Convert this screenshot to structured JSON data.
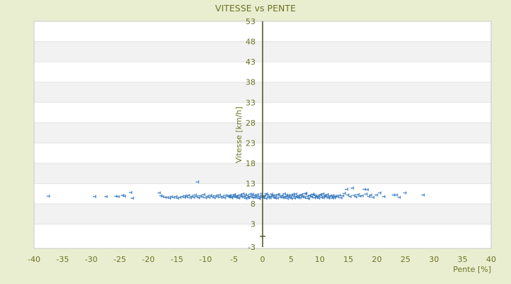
{
  "page": {
    "background_color": "#e9eed1",
    "text_color": "#6e7424"
  },
  "chart_data": {
    "type": "scatter",
    "title": "VITESSE vs PENTE",
    "xlabel": "Pente [%]",
    "ylabel": "Vitesse [km/h]",
    "xlim": [
      -40,
      40
    ],
    "ylim": [
      -3,
      53
    ],
    "x_tick_labels": [
      -40,
      -35,
      -30,
      -25,
      -20,
      -15,
      -10,
      -5,
      0,
      5,
      10,
      15,
      20,
      25,
      30,
      35,
      40
    ],
    "y_tick_labels": [
      53,
      48,
      43,
      38,
      33,
      28,
      23,
      18,
      13,
      8,
      3,
      -3
    ],
    "grid": "alternating horizontal bands, y-axis line drawn at x=0 with tick at y=0",
    "legend": "none",
    "marker": "plus",
    "marker_color": "#3e7ec1",
    "band_colors": [
      "#ffffff",
      "#f2f2f2"
    ],
    "band_line_color": "#e3e3e3",
    "plot_border_color": "#c9c9c9",
    "axis_line_color": "#3c430f",
    "points": [
      [
        -37.3,
        9.9
      ],
      [
        -29.2,
        9.8
      ],
      [
        -27.2,
        9.8
      ],
      [
        -25.5,
        9.9
      ],
      [
        -25.1,
        9.8
      ],
      [
        -24.3,
        10.1
      ],
      [
        -24.0,
        9.9
      ],
      [
        -22.9,
        10.8
      ],
      [
        -22.6,
        9.4
      ],
      [
        -17.9,
        10.7
      ],
      [
        -17.6,
        10.0
      ],
      [
        -17.3,
        9.8
      ],
      [
        -16.9,
        9.6
      ],
      [
        -16.5,
        9.6
      ],
      [
        -16.1,
        9.4
      ],
      [
        -15.8,
        9.8
      ],
      [
        -15.4,
        9.6
      ],
      [
        -15.0,
        9.8
      ],
      [
        -14.7,
        9.4
      ],
      [
        -14.3,
        9.6
      ],
      [
        -13.9,
        9.8
      ],
      [
        -13.5,
        9.6
      ],
      [
        -13.4,
        10.0
      ],
      [
        -13.1,
        9.7
      ],
      [
        -12.8,
        10.1
      ],
      [
        -12.5,
        9.5
      ],
      [
        -12.2,
        9.9
      ],
      [
        -11.9,
        9.6
      ],
      [
        -11.6,
        10.2
      ],
      [
        -11.3,
        9.8
      ],
      [
        -11.2,
        13.4
      ],
      [
        -11.0,
        9.5
      ],
      [
        -10.7,
        10.0
      ],
      [
        -10.4,
        9.7
      ],
      [
        -10.1,
        10.3
      ],
      [
        -9.8,
        9.5
      ],
      [
        -9.5,
        9.9
      ],
      [
        -9.2,
        9.6
      ],
      [
        -8.9,
        10.1
      ],
      [
        -8.6,
        9.8
      ],
      [
        -8.3,
        9.5
      ],
      [
        -8.0,
        10.0
      ],
      [
        -7.7,
        9.7
      ],
      [
        -7.4,
        10.2
      ],
      [
        -7.1,
        9.6
      ],
      [
        -6.8,
        9.9
      ],
      [
        -6.5,
        9.5
      ],
      [
        -6.2,
        10.1
      ],
      [
        -5.9,
        9.8
      ],
      [
        -5.75,
        9.8
      ],
      [
        -5.5,
        10.1
      ],
      [
        -5.25,
        9.5
      ],
      [
        -5.0,
        9.9
      ],
      [
        -4.75,
        10.3
      ],
      [
        -4.5,
        9.6
      ],
      [
        -4.25,
        10.0
      ],
      [
        -4.0,
        9.4
      ],
      [
        -3.75,
        10.2
      ],
      [
        -3.5,
        9.7
      ],
      [
        -3.25,
        10.5
      ],
      [
        -3.0,
        9.8
      ],
      [
        -2.75,
        9.3
      ],
      [
        -2.5,
        10.0
      ],
      [
        -2.25,
        9.6
      ],
      [
        -2.0,
        10.4
      ],
      [
        -1.75,
        9.9
      ],
      [
        -1.5,
        9.5
      ],
      [
        -1.25,
        10.1
      ],
      [
        -1.0,
        9.7
      ],
      [
        -0.75,
        10.3
      ],
      [
        -0.5,
        9.4
      ],
      [
        -0.25,
        9.8
      ],
      [
        0.0,
        10.6
      ],
      [
        0.25,
        9.6
      ],
      [
        0.5,
        10.0
      ],
      [
        0.75,
        9.3
      ],
      [
        1.0,
        10.2
      ],
      [
        1.25,
        9.8
      ],
      [
        1.5,
        9.5
      ],
      [
        1.75,
        10.4
      ],
      [
        2.0,
        9.9
      ],
      [
        2.25,
        9.6
      ],
      [
        2.5,
        10.1
      ],
      [
        2.75,
        9.4
      ],
      [
        3.0,
        10.3
      ],
      [
        3.25,
        9.7
      ],
      [
        3.5,
        10.0
      ],
      [
        3.75,
        9.5
      ],
      [
        4.0,
        10.5
      ],
      [
        4.25,
        9.8
      ],
      [
        4.5,
        9.3
      ],
      [
        4.75,
        10.1
      ],
      [
        5.0,
        9.6
      ],
      [
        5.25,
        10.2
      ],
      [
        5.5,
        9.9
      ],
      [
        5.75,
        9.4
      ],
      [
        6.0,
        10.4
      ],
      [
        6.25,
        9.7
      ],
      [
        6.5,
        10.0
      ],
      [
        6.75,
        9.5
      ],
      [
        7.0,
        10.3
      ],
      [
        7.25,
        9.8
      ],
      [
        7.5,
        9.6
      ],
      [
        7.75,
        10.6
      ],
      [
        8.0,
        9.9
      ],
      [
        8.25,
        9.3
      ],
      [
        8.5,
        10.1
      ],
      [
        8.75,
        9.7
      ],
      [
        9.0,
        10.4
      ],
      [
        9.25,
        9.5
      ],
      [
        9.5,
        10.0
      ],
      [
        9.75,
        9.8
      ],
      [
        10.0,
        9.4
      ],
      [
        10.25,
        10.2
      ],
      [
        10.5,
        9.6
      ],
      [
        10.75,
        10.5
      ],
      [
        11.0,
        9.9
      ],
      [
        11.25,
        9.7
      ],
      [
        11.5,
        10.3
      ],
      [
        11.75,
        9.4
      ],
      [
        12.0,
        10.0
      ],
      [
        12.25,
        9.8
      ],
      [
        12.5,
        10.1
      ],
      [
        12.75,
        9.5
      ],
      [
        13.0,
        9.9
      ],
      [
        -5.6,
        10.0
      ],
      [
        -5.2,
        9.6
      ],
      [
        -4.8,
        10.2
      ],
      [
        -4.4,
        9.8
      ],
      [
        -4.0,
        9.5
      ],
      [
        -3.6,
        10.1
      ],
      [
        -3.2,
        9.7
      ],
      [
        -2.8,
        10.3
      ],
      [
        -2.4,
        9.5
      ],
      [
        -2.0,
        9.9
      ],
      [
        -1.6,
        10.4
      ],
      [
        -1.2,
        9.6
      ],
      [
        -0.8,
        10.0
      ],
      [
        -0.4,
        9.3
      ],
      [
        0.0,
        10.2
      ],
      [
        0.4,
        9.8
      ],
      [
        0.8,
        10.5
      ],
      [
        1.2,
        9.5
      ],
      [
        1.6,
        9.9
      ],
      [
        2.0,
        10.1
      ],
      [
        2.4,
        9.4
      ],
      [
        2.8,
        10.3
      ],
      [
        3.2,
        9.7
      ],
      [
        3.6,
        10.0
      ],
      [
        4.0,
        9.6
      ],
      [
        4.4,
        10.2
      ],
      [
        4.8,
        9.8
      ],
      [
        5.2,
        9.3
      ],
      [
        5.6,
        10.4
      ],
      [
        6.0,
        9.9
      ],
      [
        6.4,
        9.5
      ],
      [
        6.8,
        10.1
      ],
      [
        7.2,
        9.7
      ],
      [
        7.6,
        10.5
      ],
      [
        8.0,
        9.4
      ],
      [
        8.4,
        10.0
      ],
      [
        8.8,
        9.8
      ],
      [
        9.2,
        10.2
      ],
      [
        9.6,
        9.6
      ],
      [
        10.0,
        9.9
      ],
      [
        10.4,
        10.3
      ],
      [
        10.8,
        9.5
      ],
      [
        11.2,
        10.1
      ],
      [
        11.6,
        9.7
      ],
      [
        12.0,
        10.0
      ],
      [
        12.4,
        9.4
      ],
      [
        12.8,
        9.8
      ],
      [
        13.3,
        9.7
      ],
      [
        13.6,
        10.1
      ],
      [
        13.9,
        9.5
      ],
      [
        14.2,
        10.0
      ],
      [
        14.5,
        10.6
      ],
      [
        14.9,
        11.6
      ],
      [
        15.1,
        10.2
      ],
      [
        15.5,
        9.8
      ],
      [
        15.9,
        11.9
      ],
      [
        16.2,
        10.1
      ],
      [
        16.5,
        9.7
      ],
      [
        16.9,
        10.3
      ],
      [
        17.2,
        9.9
      ],
      [
        17.6,
        10.0
      ],
      [
        18.0,
        11.6
      ],
      [
        18.3,
        10.4
      ],
      [
        18.5,
        11.5
      ],
      [
        18.8,
        9.8
      ],
      [
        19.1,
        10.2
      ],
      [
        19.5,
        9.6
      ],
      [
        20.1,
        10.2
      ],
      [
        20.7,
        10.7
      ],
      [
        21.4,
        9.8
      ],
      [
        23.1,
        10.2
      ],
      [
        23.6,
        10.2
      ],
      [
        24.1,
        9.6
      ],
      [
        25.1,
        10.7
      ],
      [
        28.3,
        10.2
      ]
    ]
  }
}
